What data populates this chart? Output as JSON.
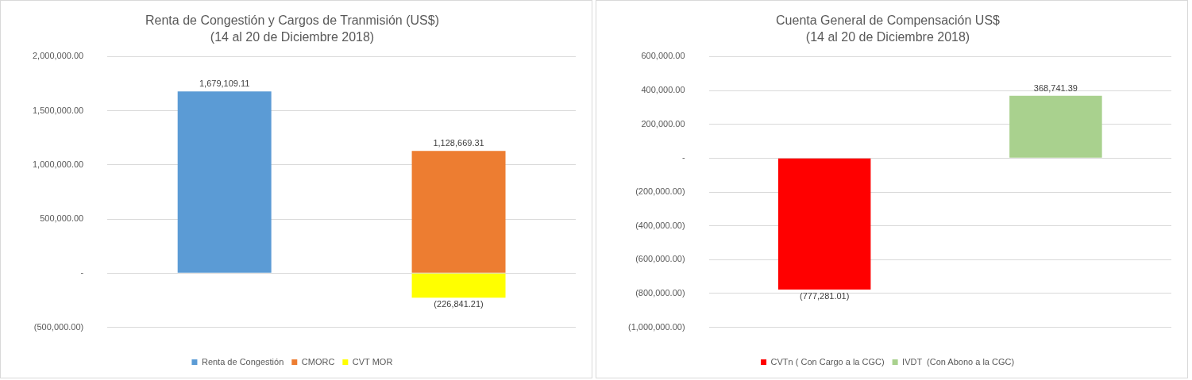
{
  "chart_data": [
    {
      "type": "bar",
      "title": "Renta de Congestión y Cargos de Tranmisión (US$)",
      "subtitle": "(14 al 20 de Diciembre 2018)",
      "categories": [
        null,
        null
      ],
      "stacked": true,
      "series": [
        {
          "name": "Renta de Congestión",
          "color": "#5b9bd5",
          "values": [
            1679109.11,
            null
          ],
          "value_labels": [
            "1,679,109.11",
            null
          ]
        },
        {
          "name": "CMORC",
          "color": "#ed7d31",
          "values": [
            null,
            1128669.31
          ],
          "value_labels": [
            null,
            "1,128,669.31"
          ]
        },
        {
          "name": "CVT MOR",
          "color": "#ffff00",
          "values": [
            null,
            -226841.21
          ],
          "value_labels": [
            null,
            "(226,841.21)"
          ]
        }
      ],
      "ylim": [
        -500000,
        2000000
      ],
      "yticks": [
        {
          "value": -500000,
          "label": "(500,000.00)"
        },
        {
          "value": 0,
          "label": "-"
        },
        {
          "value": 500000,
          "label": "500,000.00"
        },
        {
          "value": 1000000,
          "label": "1,000,000.00"
        },
        {
          "value": 1500000,
          "label": "1,500,000.00"
        },
        {
          "value": 2000000,
          "label": "2,000,000.00"
        }
      ],
      "grid": "y",
      "legend": "bottom"
    },
    {
      "type": "bar",
      "title": "Cuenta General de Compensación US$",
      "subtitle": "(14 al 20 de Diciembre 2018)",
      "categories": [
        null,
        null
      ],
      "series": [
        {
          "name": "CVTn ( Con Cargo a la CGC)",
          "color": "#ff0000",
          "values": [
            -777281.01,
            null
          ],
          "value_labels": [
            "(777,281.01)",
            null
          ]
        },
        {
          "name": "IVDT  (Con Abono a la CGC)",
          "color": "#a9d18e",
          "values": [
            null,
            368741.39
          ],
          "value_labels": [
            null,
            "368,741.39"
          ]
        }
      ],
      "ylim": [
        -1000000,
        600000
      ],
      "yticks": [
        {
          "value": -1000000,
          "label": "(1,000,000.00)"
        },
        {
          "value": -800000,
          "label": "(800,000.00)"
        },
        {
          "value": -600000,
          "label": "(600,000.00)"
        },
        {
          "value": -400000,
          "label": "(400,000.00)"
        },
        {
          "value": -200000,
          "label": "(200,000.00)"
        },
        {
          "value": 0,
          "label": "-"
        },
        {
          "value": 200000,
          "label": "200,000.00"
        },
        {
          "value": 400000,
          "label": "400,000.00"
        },
        {
          "value": 600000,
          "label": "600,000.00"
        }
      ],
      "grid": "y",
      "legend": "bottom"
    }
  ]
}
